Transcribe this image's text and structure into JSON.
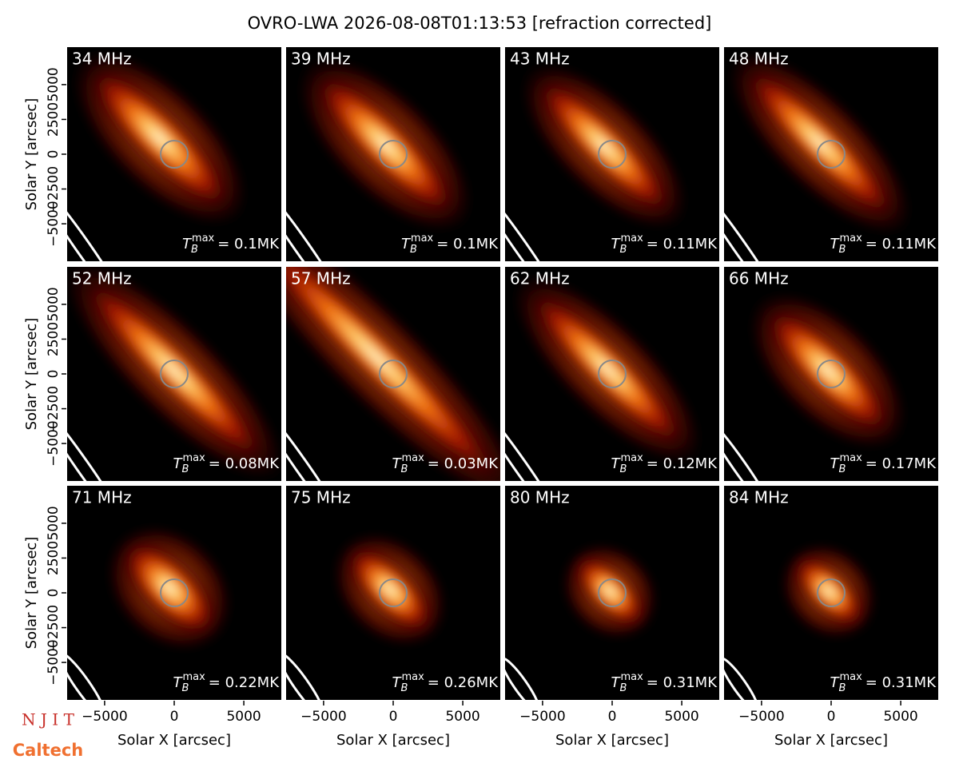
{
  "title": "OVRO-LWA 2026-08-08T01:13:53 [refraction corrected]",
  "logos": [
    "N J I T",
    "Caltech"
  ],
  "chart_data": [
    {
      "type": "image",
      "label": "34 MHz",
      "annotation": {
        "symbol": "T",
        "subscript": "B",
        "superscript": "max",
        "text": "= 0.1MK"
      },
      "xlim": [
        -7750,
        7750
      ],
      "ylim": [
        -7750,
        7750
      ],
      "ylabel": "Solar Y [arcsec]",
      "yticks": [
        {
          "value": -5000,
          "label": "−5000"
        },
        {
          "value": -2500,
          "label": "−2500"
        },
        0,
        2500,
        5000
      ]
    },
    {
      "type": "image",
      "label": "39 MHz",
      "annotation": {
        "symbol": "T",
        "subscript": "B",
        "superscript": "max",
        "text": "= 0.1MK"
      },
      "xlim": [
        -7750,
        7750
      ],
      "ylim": [
        -7750,
        7750
      ]
    },
    {
      "type": "image",
      "label": "43 MHz",
      "annotation": {
        "symbol": "T",
        "subscript": "B",
        "superscript": "max",
        "text": "= 0.11MK"
      },
      "xlim": [
        -7750,
        7750
      ],
      "ylim": [
        -7750,
        7750
      ]
    },
    {
      "type": "image",
      "label": "48 MHz",
      "annotation": {
        "symbol": "T",
        "subscript": "B",
        "superscript": "max",
        "text": "= 0.11MK"
      },
      "xlim": [
        -7750,
        7750
      ],
      "ylim": [
        -7750,
        7750
      ]
    },
    {
      "type": "image",
      "label": "52 MHz",
      "annotation": {
        "symbol": "T",
        "subscript": "B",
        "superscript": "max",
        "text": "= 0.08MK"
      },
      "xlim": [
        -7750,
        7750
      ],
      "ylim": [
        -7750,
        7750
      ],
      "ylabel": "Solar Y [arcsec]",
      "yticks": [
        {
          "value": -5000,
          "label": "−5000"
        },
        {
          "value": -2500,
          "label": "−2500"
        },
        0,
        2500,
        5000
      ]
    },
    {
      "type": "image",
      "label": "57 MHz",
      "annotation": {
        "symbol": "T",
        "subscript": "B",
        "superscript": "max",
        "text": "= 0.03MK"
      },
      "xlim": [
        -7750,
        7750
      ],
      "ylim": [
        -7750,
        7750
      ]
    },
    {
      "type": "image",
      "label": "62 MHz",
      "annotation": {
        "symbol": "T",
        "subscript": "B",
        "superscript": "max",
        "text": "= 0.12MK"
      },
      "xlim": [
        -7750,
        7750
      ],
      "ylim": [
        -7750,
        7750
      ]
    },
    {
      "type": "image",
      "label": "66 MHz",
      "annotation": {
        "symbol": "T",
        "subscript": "B",
        "superscript": "max",
        "text": "= 0.17MK"
      },
      "xlim": [
        -7750,
        7750
      ],
      "ylim": [
        -7750,
        7750
      ]
    },
    {
      "type": "image",
      "label": "71 MHz",
      "annotation": {
        "symbol": "T",
        "subscript": "B",
        "superscript": "max",
        "text": "= 0.22MK"
      },
      "xlim": [
        -7750,
        7750
      ],
      "ylim": [
        -7750,
        7750
      ],
      "xlabel": "Solar X [arcsec]",
      "ylabel": "Solar Y [arcsec]",
      "xticks": [
        {
          "value": -5000,
          "label": "−5000"
        },
        0,
        5000
      ],
      "yticks": [
        {
          "value": -5000,
          "label": "−5000"
        },
        {
          "value": -2500,
          "label": "−2500"
        },
        0,
        2500,
        5000
      ]
    },
    {
      "type": "image",
      "label": "75 MHz",
      "annotation": {
        "symbol": "T",
        "subscript": "B",
        "superscript": "max",
        "text": "= 0.26MK"
      },
      "xlim": [
        -7750,
        7750
      ],
      "ylim": [
        -7750,
        7750
      ],
      "xlabel": "Solar X [arcsec]",
      "xticks": [
        {
          "value": -5000,
          "label": "−5000"
        },
        0,
        5000
      ]
    },
    {
      "type": "image",
      "label": "80 MHz",
      "annotation": {
        "symbol": "T",
        "subscript": "B",
        "superscript": "max",
        "text": "= 0.31MK"
      },
      "xlim": [
        -7750,
        7750
      ],
      "ylim": [
        -7750,
        7750
      ],
      "xlabel": "Solar X [arcsec]",
      "xticks": [
        {
          "value": -5000,
          "label": "−5000"
        },
        0,
        5000
      ]
    },
    {
      "type": "image",
      "label": "84 MHz",
      "annotation": {
        "symbol": "T",
        "subscript": "B",
        "superscript": "max",
        "text": "= 0.31MK"
      },
      "xlim": [
        -7750,
        7750
      ],
      "ylim": [
        -7750,
        7750
      ],
      "xlabel": "Solar X [arcsec]",
      "xticks": [
        {
          "value": -5000,
          "label": "−5000"
        },
        0,
        5000
      ]
    }
  ]
}
